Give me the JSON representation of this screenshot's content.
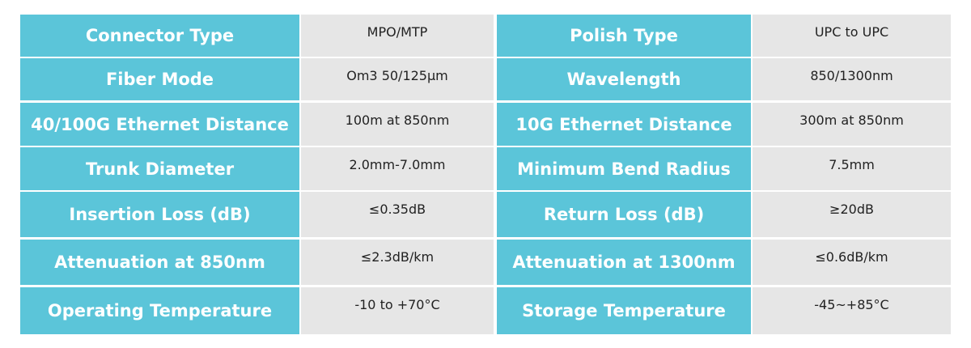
{
  "table": {
    "rows": [
      [
        "Connector Type",
        "MPO/MTP",
        "Polish Type",
        "UPC to UPC"
      ],
      [
        "Fiber Mode",
        "Om3 50/125μm",
        "Wavelength",
        "850/1300nm"
      ],
      [
        "40/100G Ethernet Distance",
        "100m at 850nm",
        "10G Ethernet Distance",
        "300m at 850nm"
      ],
      [
        "Trunk Diameter",
        "2.0mm-7.0mm",
        "Minimum Bend Radius",
        "7.5mm"
      ],
      [
        "Insertion Loss (dB)",
        "≤0.35dB",
        "Return Loss (dB)",
        "≥20dB"
      ],
      [
        "Attenuation at 850nm",
        "≤2.3dB/km",
        "Attenuation at 1300nm",
        "≤0.6dB/km"
      ],
      [
        "Operating Temperature",
        "-10 to +70°C",
        "Storage Temperature",
        "-45~+85°C"
      ]
    ]
  }
}
